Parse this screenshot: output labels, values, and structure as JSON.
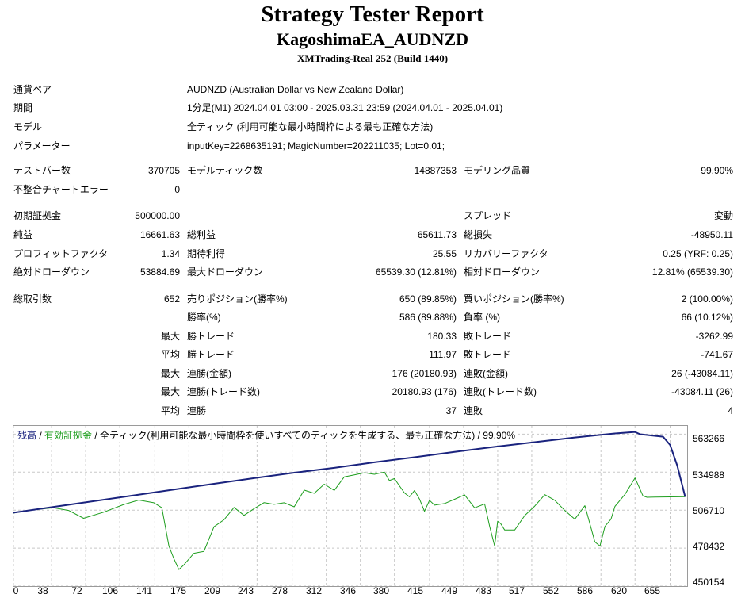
{
  "header": {
    "title": "Strategy Tester Report",
    "subtitle": "KagoshimaEA_AUDNZD",
    "build": "XMTrading-Real 252 (Build 1440)"
  },
  "info": [
    {
      "label": "通貨ペア",
      "value": "AUDNZD (Australian Dollar vs New Zealand Dollar)"
    },
    {
      "label": "期間",
      "value": "1分足(M1) 2024.04.01 03:00 - 2025.03.31 23:59 (2024.04.01 - 2025.04.01)"
    },
    {
      "label": "モデル",
      "value": "全ティック (利用可能な最小時間枠による最も正確な方法)"
    },
    {
      "label": "パラメーター",
      "value": "inputKey=2268635191; MagicNumber=202211035; Lot=0.01;"
    }
  ],
  "stats": {
    "test_bars_label": "テストバー数",
    "test_bars": "370705",
    "model_ticks_label": "モデルティック数",
    "model_ticks": "14887353",
    "model_quality_label": "モデリング品質",
    "model_quality": "99.90%",
    "mismatch_label": "不整合チャートエラー",
    "mismatch": "0",
    "initial_deposit_label": "初期証拠金",
    "initial_deposit": "500000.00",
    "spread_label": "スプレッド",
    "spread": "変動",
    "net_profit_label": "純益",
    "net_profit": "16661.63",
    "gross_profit_label": "総利益",
    "gross_profit": "65611.73",
    "gross_loss_label": "総損失",
    "gross_loss": "-48950.11",
    "profit_factor_label": "プロフィットファクタ",
    "profit_factor": "1.34",
    "expected_payoff_label": "期待利得",
    "expected_payoff": "25.55",
    "recovery_factor_label": "リカバリーファクタ",
    "recovery_factor": "0.25 (YRF: 0.25)",
    "abs_drawdown_label": "絶対ドローダウン",
    "abs_drawdown": "53884.69",
    "max_drawdown_label": "最大ドローダウン",
    "max_drawdown": "65539.30 (12.81%)",
    "rel_drawdown_label": "相対ドローダウン",
    "rel_drawdown": "12.81% (65539.30)",
    "total_trades_label": "総取引数",
    "total_trades": "652",
    "short_label": "売りポジション(勝率%)",
    "short": "650 (89.85%)",
    "long_label": "買いポジション(勝率%)",
    "long": "2 (100.00%)",
    "win_rate_label": "勝率(%)",
    "win_rate": "586 (89.88%)",
    "loss_rate_label": "負率 (%)",
    "loss_rate": "66 (10.12%)",
    "max_label": "最大",
    "avg_label": "平均",
    "largest_win_label": "勝トレード",
    "largest_win": "180.33",
    "largest_loss_label": "敗トレード",
    "largest_loss": "-3262.99",
    "avg_win_label": "勝トレード",
    "avg_win": "111.97",
    "avg_loss_label": "敗トレード",
    "avg_loss": "-741.67",
    "max_consec_wins_money_label": "連勝(金額)",
    "max_consec_wins_money": "176 (20180.93)",
    "max_consec_losses_money_label": "連敗(金額)",
    "max_consec_losses_money": "26 (-43084.11)",
    "max_consec_wins_count_label": "連勝(トレード数)",
    "max_consec_wins_count": "20180.93 (176)",
    "max_consec_losses_count_label": "連敗(トレード数)",
    "max_consec_losses_count": "-43084.11 (26)",
    "avg_consec_wins_label": "連勝",
    "avg_consec_wins": "37",
    "avg_consec_losses_label": "連敗",
    "avg_consec_losses": "4"
  },
  "chart_data": {
    "type": "line",
    "legend": {
      "balance": "残高",
      "sep1": " / ",
      "equity": "有効証拠金",
      "rest": " / 全ティック(利用可能な最小時間枠を使いすべてのティックを生成する、最も正確な方法) / 99.90%"
    },
    "colors": {
      "balance": "#1a237e",
      "equity": "#1e9e1e",
      "grid": "#c8c8c8"
    },
    "xlim": [
      0,
      672
    ],
    "ylim": [
      450154,
      569400
    ],
    "yticks": [
      "563266",
      "534988",
      "506710",
      "478432",
      "450154"
    ],
    "xticks": [
      "0",
      "38",
      "72",
      "106",
      "141",
      "175",
      "209",
      "243",
      "278",
      "312",
      "346",
      "380",
      "415",
      "449",
      "483",
      "517",
      "552",
      "586",
      "620",
      "655"
    ],
    "series": [
      {
        "key": "balance",
        "x": [
          0,
          40,
          80,
          120,
          160,
          200,
          240,
          280,
          320,
          360,
          400,
          440,
          480,
          520,
          560,
          600,
          620,
          625,
          635,
          648,
          655,
          662,
          670
        ],
        "y": [
          504800,
          509100,
          513400,
          517700,
          522000,
          526300,
          530500,
          534600,
          538200,
          542300,
          546100,
          550100,
          553800,
          557300,
          560800,
          563800,
          564900,
          563200,
          562400,
          561400,
          555200,
          540000,
          516600
        ]
      },
      {
        "key": "equity",
        "x": [
          0,
          20,
          40,
          55,
          70,
          90,
          110,
          125,
          140,
          148,
          155,
          160,
          165,
          170,
          180,
          190,
          200,
          210,
          220,
          230,
          240,
          250,
          260,
          270,
          280,
          290,
          300,
          310,
          320,
          330,
          340,
          350,
          360,
          370,
          375,
          380,
          385,
          390,
          395,
          400,
          405,
          410,
          415,
          420,
          430,
          440,
          450,
          460,
          470,
          475,
          480,
          483,
          486,
          490,
          500,
          510,
          520,
          530,
          540,
          550,
          560,
          570,
          580,
          585,
          590,
          596,
          600,
          610,
          620,
          628,
          632,
          640,
          670
        ],
        "y": [
          504500,
          507000,
          508400,
          506500,
          500600,
          505200,
          510900,
          514200,
          512200,
          508500,
          480000,
          470500,
          462500,
          466000,
          474600,
          476000,
          494300,
          499500,
          508700,
          502800,
          507800,
          512300,
          511000,
          512200,
          509200,
          521600,
          519200,
          526000,
          521400,
          531500,
          533000,
          534500,
          533400,
          535000,
          528700,
          530200,
          524800,
          519500,
          516600,
          521300,
          515000,
          505800,
          514000,
          510400,
          511600,
          514800,
          518100,
          508400,
          511300,
          494600,
          480000,
          498400,
          496700,
          491900,
          491900,
          502700,
          509700,
          518200,
          514000,
          506400,
          500000,
          510000,
          483000,
          480000,
          494600,
          500000,
          509500,
          518500,
          530700,
          517300,
          516300,
          516400,
          516700
        ]
      }
    ]
  }
}
